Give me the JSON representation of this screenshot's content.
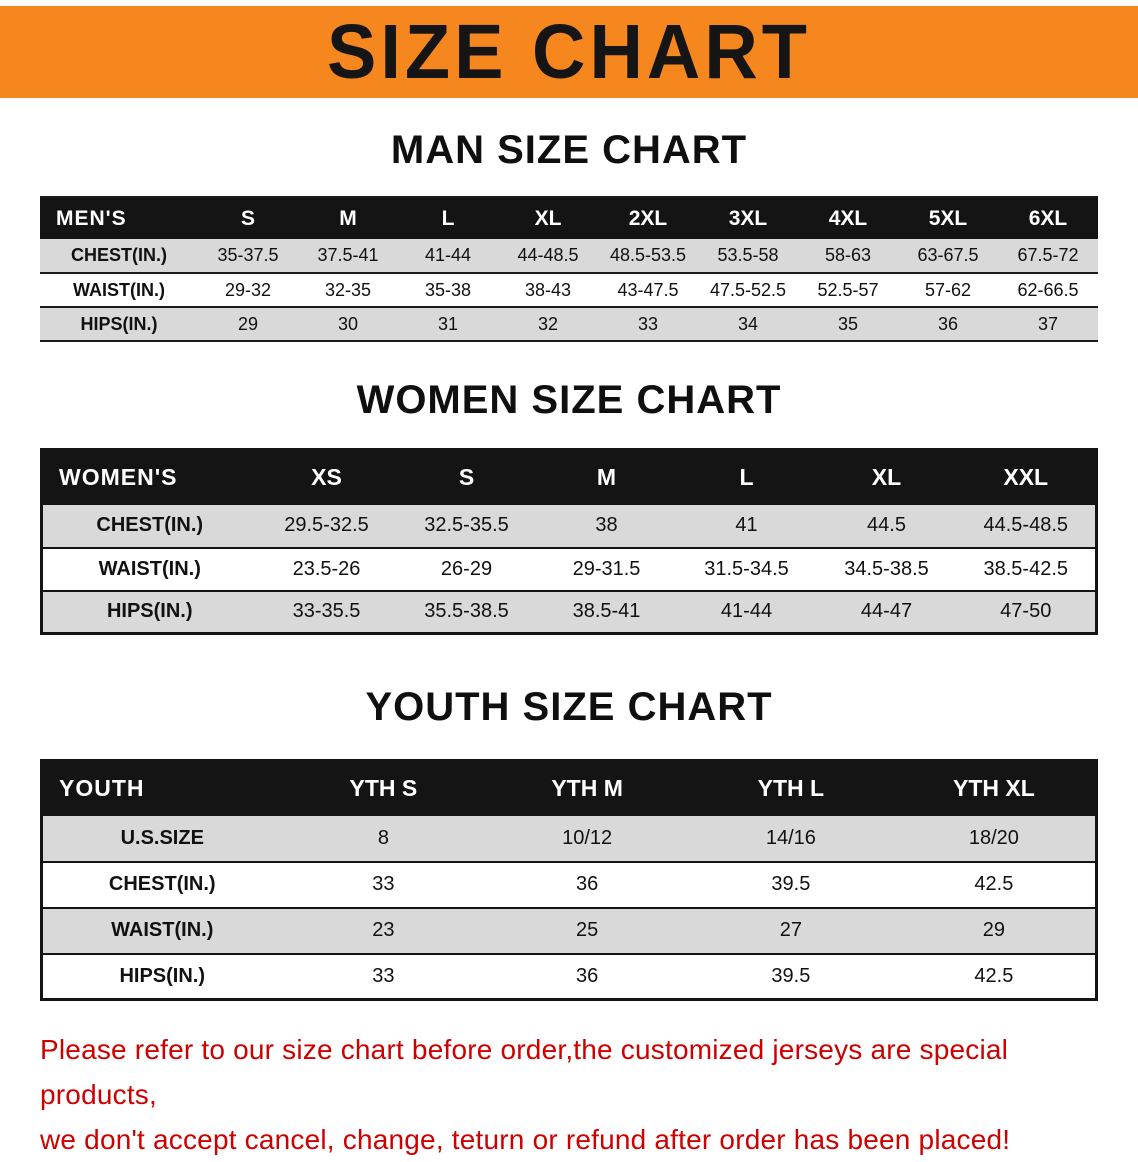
{
  "banner": {
    "title": "SIZE CHART"
  },
  "sections": [
    {
      "heading": "MAN SIZE CHART",
      "table": {
        "corner": "MEN'S",
        "columns": [
          "S",
          "M",
          "L",
          "XL",
          "2XL",
          "3XL",
          "4XL",
          "5XL",
          "6XL"
        ],
        "rows": [
          {
            "label": "CHEST(IN.)",
            "values": [
              "35-37.5",
              "37.5-41",
              "41-44",
              "44-48.5",
              "48.5-53.5",
              "53.5-58",
              "58-63",
              "63-67.5",
              "67.5-72"
            ]
          },
          {
            "label": "WAIST(IN.)",
            "values": [
              "29-32",
              "32-35",
              "35-38",
              "38-43",
              "43-47.5",
              "47.5-52.5",
              "52.5-57",
              "57-62",
              "62-66.5"
            ]
          },
          {
            "label": "HIPS(IN.)",
            "values": [
              "29",
              "30",
              "31",
              "32",
              "33",
              "34",
              "35",
              "36",
              "37"
            ]
          }
        ]
      }
    },
    {
      "heading": "WOMEN SIZE CHART",
      "table": {
        "corner": "WOMEN'S",
        "columns": [
          "XS",
          "S",
          "M",
          "L",
          "XL",
          "XXL"
        ],
        "rows": [
          {
            "label": "CHEST(IN.)",
            "values": [
              "29.5-32.5",
              "32.5-35.5",
              "38",
              "41",
              "44.5",
              "44.5-48.5"
            ]
          },
          {
            "label": "WAIST(IN.)",
            "values": [
              "23.5-26",
              "26-29",
              "29-31.5",
              "31.5-34.5",
              "34.5-38.5",
              "38.5-42.5"
            ]
          },
          {
            "label": "HIPS(IN.)",
            "values": [
              "33-35.5",
              "35.5-38.5",
              "38.5-41",
              "41-44",
              "44-47",
              "47-50"
            ]
          }
        ]
      }
    },
    {
      "heading": "YOUTH SIZE CHART",
      "table": {
        "corner": "YOUTH",
        "columns": [
          "YTH S",
          "YTH M",
          "YTH L",
          "YTH XL"
        ],
        "rows": [
          {
            "label": "U.S.SIZE",
            "values": [
              "8",
              "10/12",
              "14/16",
              "18/20"
            ]
          },
          {
            "label": "CHEST(IN.)",
            "values": [
              "33",
              "36",
              "39.5",
              "42.5"
            ]
          },
          {
            "label": "WAIST(IN.)",
            "values": [
              "23",
              "25",
              "27",
              "29"
            ]
          },
          {
            "label": "HIPS(IN.)",
            "values": [
              "33",
              "36",
              "39.5",
              "42.5"
            ]
          }
        ]
      }
    }
  ],
  "footer": {
    "line1": "Please refer to our size chart before order,the customized jerseys are special products,",
    "line2": "we don't accept cancel, change, teturn or refund after order has been placed!"
  },
  "colors": {
    "banner_bg": "#F6871F",
    "header_bg": "#141414",
    "row_alt_bg": "#d9d9d9",
    "footer_text": "#CE0000"
  }
}
